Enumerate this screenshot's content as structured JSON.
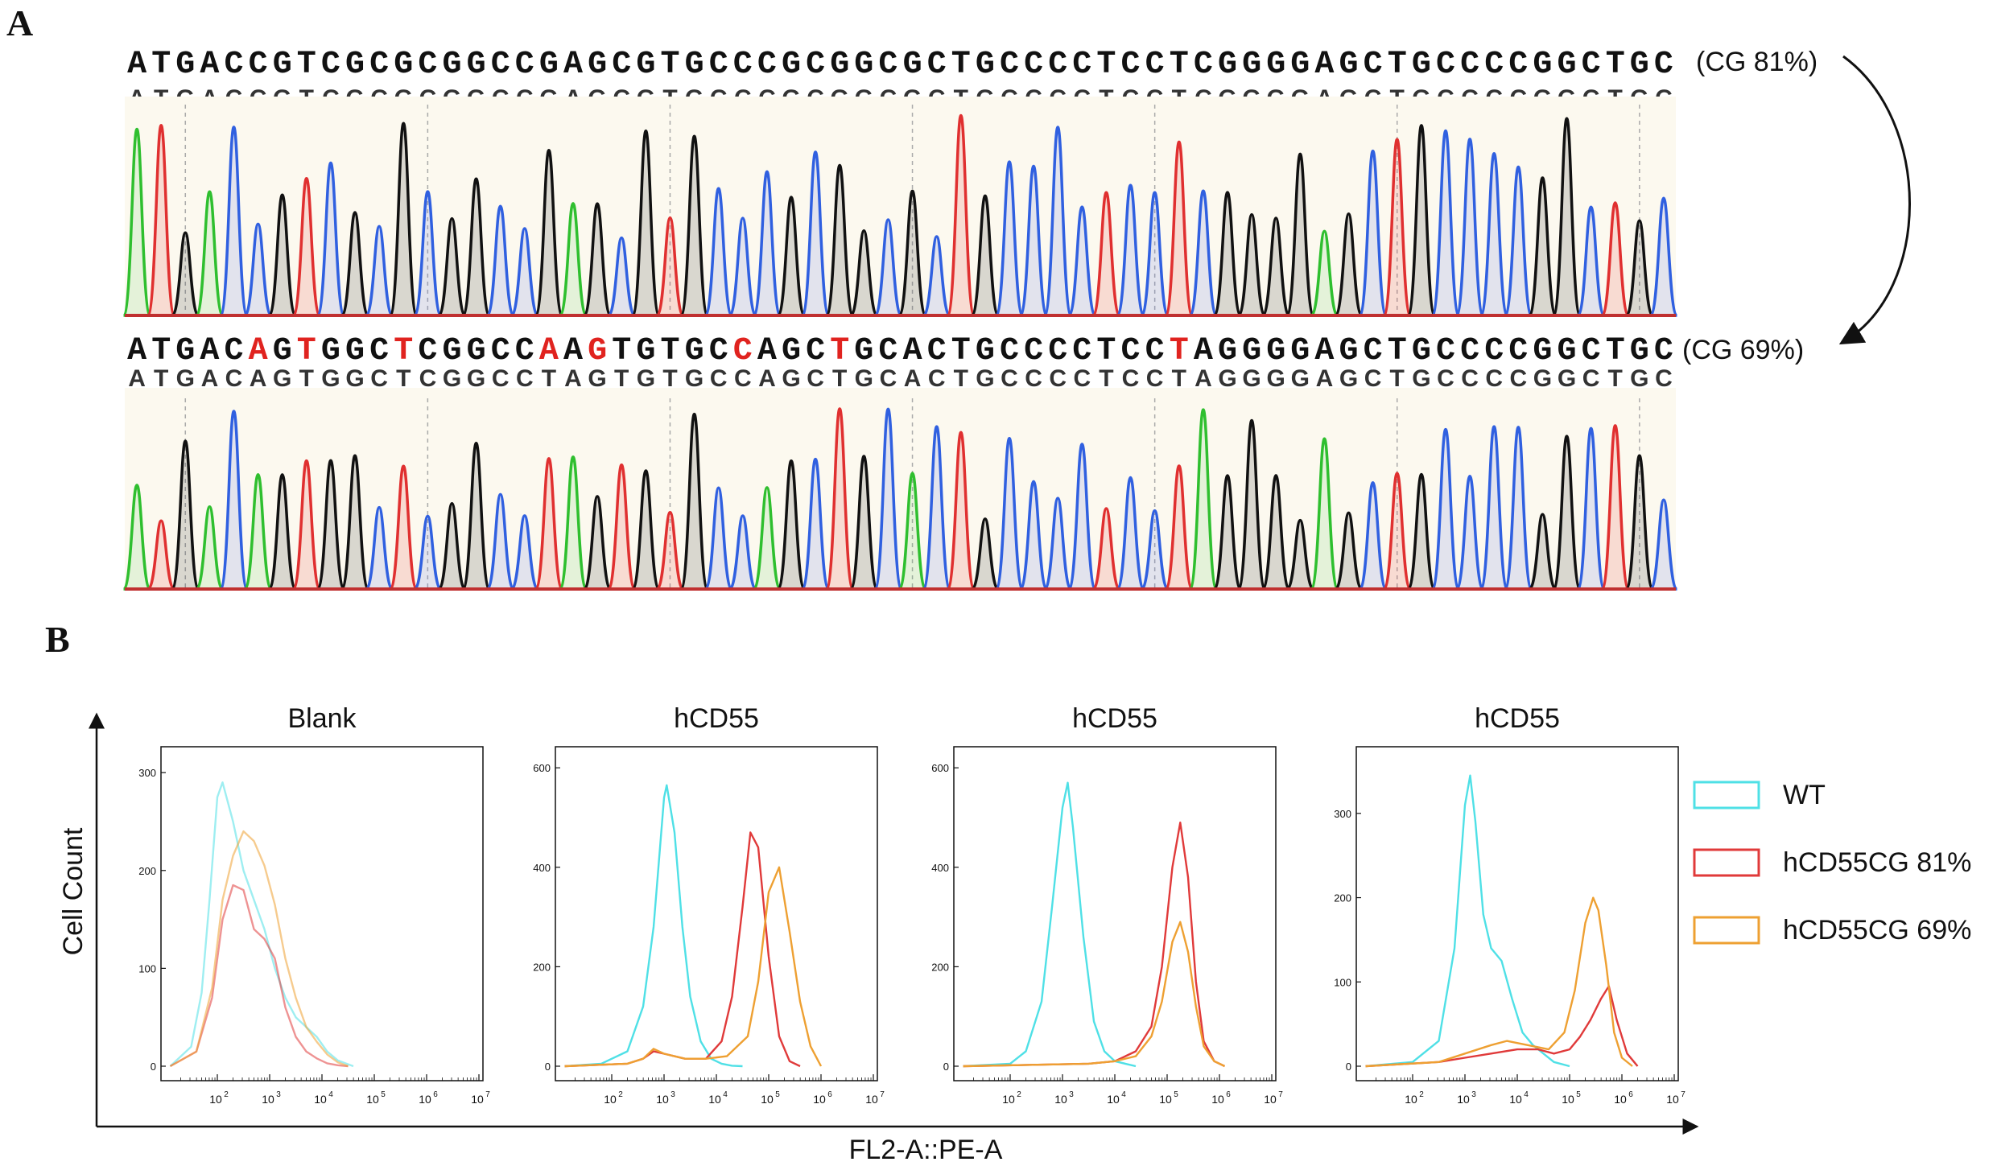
{
  "panel_a": {
    "label": "A",
    "top": {
      "sequence": "ATGACCGTCGCGCGGCCGAGCGTGCCCGCGGCGCTGCCCCTCCTCGGGGAGCTGCCCCGGCTGC",
      "readout": "ATGACCGTCGCGCGGCCGAGCGTGCCCGCGGCGCTGCCCCTCCTCGGGGAGCTGCCCCGGCTGC",
      "gc_label": "(CG 81%)"
    },
    "bottom": {
      "sequence": "ATGACAGTGGCTCGGCCAAGTGTGCCAGCTGCACTGCCCCTCCTAGGGGAGCTGCCCCGGCTGC",
      "readout": "ATGACAGTGGCTCGGCCTAGTGTGCCAGCTGCACTGCCCCTCCTAGGGGAGCTGCCCCGGCTGC",
      "gc_label": "(CG 69%)",
      "mutated_positions": [
        5,
        7,
        11,
        17,
        19,
        25,
        29,
        43
      ]
    },
    "base_colors": {
      "A": "#2fbf2f",
      "C": "#3060e0",
      "G": "#111111",
      "T": "#e03030"
    },
    "highlight_color": "#e0231f"
  },
  "panel_b": {
    "label": "B",
    "y_axis_label": "Cell Count",
    "x_axis_label": "FL2-A::PE-A",
    "x_ticks": [
      "10",
      "10",
      "10",
      "10",
      "10",
      "10"
    ],
    "x_tick_exponents": [
      "2",
      "3",
      "4",
      "5",
      "6",
      "7"
    ],
    "legend": [
      {
        "name": "WT",
        "color": "#4fe0e6"
      },
      {
        "name": "hCD55CG 81%",
        "color": "#e03a3a"
      },
      {
        "name": "hCD55CG 69%",
        "color": "#eea032"
      }
    ]
  },
  "chart_data": [
    {
      "type": "line",
      "title": "Blank",
      "x_scale": "log10",
      "xlim": [
        10,
        10000000
      ],
      "ylim": [
        0,
        310
      ],
      "y_ticks": [
        0,
        100,
        200,
        300
      ],
      "series": [
        {
          "name": "WT",
          "color": "#4fe0e6",
          "opacity": 0.55,
          "x_log": [
            1.1,
            1.5,
            1.7,
            1.85,
            2.0,
            2.1,
            2.3,
            2.5,
            2.7,
            2.9,
            3.1,
            3.3,
            3.5,
            3.7,
            3.9,
            4.1,
            4.3,
            4.5,
            4.6
          ],
          "y": [
            0,
            20,
            75,
            170,
            275,
            290,
            250,
            200,
            170,
            140,
            100,
            70,
            50,
            40,
            30,
            15,
            6,
            2,
            0
          ]
        },
        {
          "name": "hCD55CG 81%",
          "color": "#e03a3a",
          "opacity": 0.55,
          "x_log": [
            1.1,
            1.6,
            1.9,
            2.1,
            2.3,
            2.5,
            2.7,
            2.9,
            3.1,
            3.3,
            3.5,
            3.7,
            3.9,
            4.1,
            4.3,
            4.5
          ],
          "y": [
            0,
            15,
            70,
            150,
            185,
            180,
            140,
            130,
            110,
            60,
            30,
            15,
            8,
            3,
            1,
            0
          ]
        },
        {
          "name": "hCD55CG 69%",
          "color": "#eea032",
          "opacity": 0.55,
          "x_log": [
            1.1,
            1.6,
            1.9,
            2.1,
            2.3,
            2.5,
            2.7,
            2.9,
            3.1,
            3.3,
            3.5,
            3.7,
            3.9,
            4.1,
            4.3,
            4.5
          ],
          "y": [
            0,
            15,
            80,
            170,
            215,
            240,
            230,
            205,
            165,
            110,
            70,
            40,
            25,
            12,
            4,
            0
          ]
        }
      ]
    },
    {
      "type": "line",
      "title": "hCD55",
      "x_scale": "log10",
      "xlim": [
        10,
        10000000
      ],
      "ylim": [
        0,
        610
      ],
      "y_ticks": [
        0,
        200,
        400,
        600
      ],
      "series": [
        {
          "name": "WT",
          "color": "#4fe0e6",
          "opacity": 1,
          "x_log": [
            1.1,
            1.8,
            2.3,
            2.6,
            2.8,
            3.0,
            3.05,
            3.2,
            3.35,
            3.5,
            3.7,
            3.9,
            4.1,
            4.3,
            4.5
          ],
          "y": [
            0,
            5,
            30,
            120,
            280,
            540,
            565,
            470,
            280,
            140,
            50,
            15,
            5,
            1,
            0
          ]
        },
        {
          "name": "hCD55CG 81%",
          "color": "#e03a3a",
          "opacity": 1,
          "x_log": [
            1.1,
            2.3,
            2.6,
            2.8,
            3.0,
            3.4,
            3.8,
            4.1,
            4.3,
            4.5,
            4.65,
            4.8,
            5.0,
            5.2,
            5.4,
            5.6
          ],
          "y": [
            0,
            5,
            15,
            30,
            25,
            15,
            15,
            50,
            140,
            320,
            470,
            440,
            220,
            60,
            10,
            0
          ]
        },
        {
          "name": "hCD55CG 69%",
          "color": "#eea032",
          "opacity": 1,
          "x_log": [
            1.1,
            2.3,
            2.6,
            2.8,
            3.0,
            3.4,
            3.8,
            4.2,
            4.6,
            4.8,
            5.0,
            5.2,
            5.4,
            5.6,
            5.8,
            6.0
          ],
          "y": [
            0,
            5,
            15,
            35,
            25,
            15,
            15,
            20,
            60,
            170,
            350,
            400,
            270,
            130,
            40,
            0
          ]
        }
      ]
    },
    {
      "type": "line",
      "title": "hCD55",
      "x_scale": "log10",
      "xlim": [
        10,
        10000000
      ],
      "ylim": [
        0,
        610
      ],
      "y_ticks": [
        0,
        200,
        400,
        600
      ],
      "series": [
        {
          "name": "WT",
          "color": "#4fe0e6",
          "opacity": 1,
          "x_log": [
            1.1,
            2.0,
            2.3,
            2.6,
            2.8,
            3.0,
            3.1,
            3.2,
            3.4,
            3.6,
            3.8,
            4.0,
            4.2,
            4.4
          ],
          "y": [
            0,
            5,
            30,
            130,
            320,
            520,
            570,
            480,
            260,
            90,
            30,
            10,
            5,
            0
          ]
        },
        {
          "name": "hCD55CG 81%",
          "color": "#e03a3a",
          "opacity": 1,
          "x_log": [
            1.1,
            3.5,
            4.0,
            4.4,
            4.7,
            4.9,
            5.1,
            5.25,
            5.4,
            5.55,
            5.7,
            5.9,
            6.1
          ],
          "y": [
            0,
            5,
            10,
            30,
            80,
            200,
            400,
            490,
            380,
            170,
            50,
            10,
            0
          ]
        },
        {
          "name": "hCD55CG 69%",
          "color": "#eea032",
          "opacity": 1,
          "x_log": [
            1.1,
            3.5,
            4.0,
            4.4,
            4.7,
            4.9,
            5.1,
            5.25,
            5.4,
            5.55,
            5.7,
            5.9,
            6.1
          ],
          "y": [
            0,
            5,
            10,
            20,
            60,
            130,
            250,
            290,
            230,
            120,
            40,
            10,
            0
          ]
        }
      ]
    },
    {
      "type": "line",
      "title": "hCD55",
      "x_scale": "log10",
      "xlim": [
        10,
        10000000
      ],
      "ylim": [
        0,
        360
      ],
      "y_ticks": [
        0,
        100,
        200,
        300
      ],
      "series": [
        {
          "name": "WT",
          "color": "#4fe0e6",
          "opacity": 1,
          "x_log": [
            1.1,
            2.0,
            2.5,
            2.8,
            3.0,
            3.1,
            3.2,
            3.35,
            3.5,
            3.7,
            3.9,
            4.1,
            4.3,
            4.5,
            4.7,
            5.0
          ],
          "y": [
            0,
            5,
            30,
            140,
            310,
            345,
            290,
            180,
            140,
            125,
            80,
            40,
            25,
            15,
            5,
            0
          ]
        },
        {
          "name": "hCD55CG 81%",
          "color": "#e03a3a",
          "opacity": 1,
          "x_log": [
            1.1,
            2.5,
            3.0,
            3.5,
            4.0,
            4.4,
            4.7,
            5.0,
            5.2,
            5.4,
            5.6,
            5.75,
            5.9,
            6.1,
            6.3
          ],
          "y": [
            0,
            5,
            10,
            15,
            20,
            20,
            15,
            20,
            35,
            55,
            80,
            95,
            55,
            15,
            0
          ]
        },
        {
          "name": "hCD55CG 69%",
          "color": "#eea032",
          "opacity": 1,
          "x_log": [
            1.1,
            2.5,
            3.0,
            3.5,
            3.8,
            4.2,
            4.6,
            4.9,
            5.1,
            5.3,
            5.45,
            5.55,
            5.7,
            5.85,
            6.0,
            6.2
          ],
          "y": [
            0,
            5,
            15,
            25,
            30,
            25,
            20,
            40,
            90,
            170,
            200,
            185,
            120,
            40,
            10,
            0
          ]
        }
      ]
    }
  ]
}
